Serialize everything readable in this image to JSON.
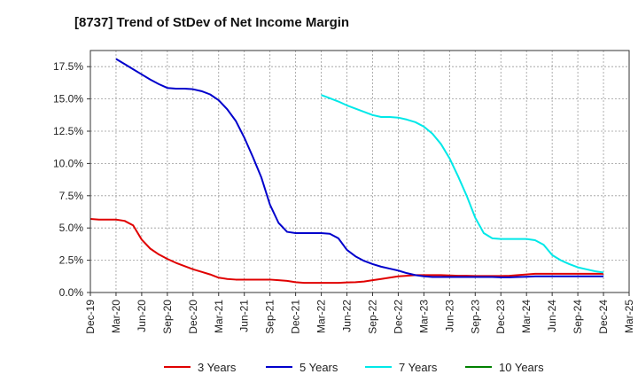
{
  "chart_data": {
    "type": "line",
    "title": "[8737]  Trend of StDev of Net Income Margin",
    "xlabel": "",
    "ylabel": "",
    "ylim": [
      0,
      18.75
    ],
    "y_ticks": [
      "0.0%",
      "2.5%",
      "5.0%",
      "7.5%",
      "10.0%",
      "12.5%",
      "15.0%",
      "17.5%"
    ],
    "x_ticks": [
      "Dec-19",
      "Mar-20",
      "Jun-20",
      "Sep-20",
      "Dec-20",
      "Mar-21",
      "Jun-21",
      "Sep-21",
      "Dec-21",
      "Mar-22",
      "Jun-22",
      "Sep-22",
      "Dec-22",
      "Mar-23",
      "Jun-23",
      "Sep-23",
      "Dec-23",
      "Mar-24",
      "Jun-24",
      "Sep-24",
      "Dec-24",
      "Mar-25"
    ],
    "grid": true,
    "legend_position": "bottom",
    "series": [
      {
        "name": "3 Years",
        "color": "#e00000",
        "points": [
          [
            "2019-12",
            5.7
          ],
          [
            "2020-01",
            5.65
          ],
          [
            "2020-02",
            5.65
          ],
          [
            "2020-03",
            5.65
          ],
          [
            "2020-04",
            5.55
          ],
          [
            "2020-05",
            5.2
          ],
          [
            "2020-06",
            4.1
          ],
          [
            "2020-07",
            3.4
          ],
          [
            "2020-08",
            2.95
          ],
          [
            "2020-09",
            2.6
          ],
          [
            "2020-10",
            2.3
          ],
          [
            "2020-11",
            2.05
          ],
          [
            "2020-12",
            1.8
          ],
          [
            "2021-01",
            1.6
          ],
          [
            "2021-02",
            1.4
          ],
          [
            "2021-03",
            1.15
          ],
          [
            "2021-04",
            1.05
          ],
          [
            "2021-05",
            1.0
          ],
          [
            "2021-06",
            1.0
          ],
          [
            "2021-07",
            1.0
          ],
          [
            "2021-08",
            1.0
          ],
          [
            "2021-09",
            1.0
          ],
          [
            "2021-10",
            0.95
          ],
          [
            "2021-11",
            0.9
          ],
          [
            "2021-12",
            0.8
          ],
          [
            "2022-01",
            0.75
          ],
          [
            "2022-02",
            0.75
          ],
          [
            "2022-03",
            0.75
          ],
          [
            "2022-04",
            0.75
          ],
          [
            "2022-05",
            0.75
          ],
          [
            "2022-06",
            0.78
          ],
          [
            "2022-07",
            0.8
          ],
          [
            "2022-08",
            0.85
          ],
          [
            "2022-09",
            0.95
          ],
          [
            "2022-10",
            1.05
          ],
          [
            "2022-11",
            1.15
          ],
          [
            "2022-12",
            1.25
          ],
          [
            "2023-01",
            1.3
          ],
          [
            "2023-02",
            1.35
          ],
          [
            "2023-03",
            1.35
          ],
          [
            "2023-04",
            1.35
          ],
          [
            "2023-05",
            1.35
          ],
          [
            "2023-06",
            1.32
          ],
          [
            "2023-07",
            1.3
          ],
          [
            "2023-08",
            1.3
          ],
          [
            "2023-09",
            1.28
          ],
          [
            "2023-10",
            1.28
          ],
          [
            "2023-11",
            1.28
          ],
          [
            "2023-12",
            1.28
          ],
          [
            "2024-01",
            1.3
          ],
          [
            "2024-02",
            1.35
          ],
          [
            "2024-03",
            1.4
          ],
          [
            "2024-04",
            1.45
          ],
          [
            "2024-05",
            1.45
          ],
          [
            "2024-06",
            1.45
          ],
          [
            "2024-07",
            1.45
          ],
          [
            "2024-08",
            1.45
          ],
          [
            "2024-09",
            1.45
          ],
          [
            "2024-10",
            1.45
          ],
          [
            "2024-11",
            1.45
          ],
          [
            "2024-12",
            1.45
          ]
        ]
      },
      {
        "name": "5 Years",
        "color": "#0000cc",
        "points": [
          [
            "2020-03",
            18.1
          ],
          [
            "2020-04",
            17.7
          ],
          [
            "2020-05",
            17.3
          ],
          [
            "2020-06",
            16.9
          ],
          [
            "2020-07",
            16.5
          ],
          [
            "2020-08",
            16.15
          ],
          [
            "2020-09",
            15.85
          ],
          [
            "2020-10",
            15.8
          ],
          [
            "2020-11",
            15.8
          ],
          [
            "2020-12",
            15.75
          ],
          [
            "2021-01",
            15.6
          ],
          [
            "2021-02",
            15.35
          ],
          [
            "2021-03",
            14.9
          ],
          [
            "2021-04",
            14.2
          ],
          [
            "2021-05",
            13.3
          ],
          [
            "2021-06",
            12.0
          ],
          [
            "2021-07",
            10.5
          ],
          [
            "2021-08",
            8.9
          ],
          [
            "2021-09",
            6.8
          ],
          [
            "2021-10",
            5.4
          ],
          [
            "2021-11",
            4.7
          ],
          [
            "2021-12",
            4.6
          ],
          [
            "2022-01",
            4.6
          ],
          [
            "2022-02",
            4.6
          ],
          [
            "2022-03",
            4.6
          ],
          [
            "2022-04",
            4.55
          ],
          [
            "2022-05",
            4.2
          ],
          [
            "2022-06",
            3.3
          ],
          [
            "2022-07",
            2.8
          ],
          [
            "2022-08",
            2.45
          ],
          [
            "2022-09",
            2.2
          ],
          [
            "2022-10",
            2.0
          ],
          [
            "2022-11",
            1.85
          ],
          [
            "2022-12",
            1.7
          ],
          [
            "2023-01",
            1.5
          ],
          [
            "2023-02",
            1.35
          ],
          [
            "2023-03",
            1.25
          ],
          [
            "2023-04",
            1.2
          ],
          [
            "2023-05",
            1.2
          ],
          [
            "2023-06",
            1.2
          ],
          [
            "2023-07",
            1.2
          ],
          [
            "2023-08",
            1.2
          ],
          [
            "2023-09",
            1.2
          ],
          [
            "2023-10",
            1.2
          ],
          [
            "2023-11",
            1.2
          ],
          [
            "2023-12",
            1.18
          ],
          [
            "2024-01",
            1.18
          ],
          [
            "2024-02",
            1.2
          ],
          [
            "2024-03",
            1.22
          ],
          [
            "2024-04",
            1.25
          ],
          [
            "2024-05",
            1.25
          ],
          [
            "2024-06",
            1.25
          ],
          [
            "2024-07",
            1.25
          ],
          [
            "2024-08",
            1.25
          ],
          [
            "2024-09",
            1.25
          ],
          [
            "2024-10",
            1.25
          ],
          [
            "2024-11",
            1.25
          ],
          [
            "2024-12",
            1.25
          ]
        ]
      },
      {
        "name": "7 Years",
        "color": "#00e8e8",
        "points": [
          [
            "2022-03",
            15.3
          ],
          [
            "2022-04",
            15.05
          ],
          [
            "2022-05",
            14.8
          ],
          [
            "2022-06",
            14.5
          ],
          [
            "2022-07",
            14.25
          ],
          [
            "2022-08",
            14.0
          ],
          [
            "2022-09",
            13.75
          ],
          [
            "2022-10",
            13.6
          ],
          [
            "2022-11",
            13.6
          ],
          [
            "2022-12",
            13.55
          ],
          [
            "2023-01",
            13.4
          ],
          [
            "2023-02",
            13.2
          ],
          [
            "2023-03",
            12.85
          ],
          [
            "2023-04",
            12.3
          ],
          [
            "2023-05",
            11.5
          ],
          [
            "2023-06",
            10.4
          ],
          [
            "2023-07",
            9.0
          ],
          [
            "2023-08",
            7.5
          ],
          [
            "2023-09",
            5.8
          ],
          [
            "2023-10",
            4.6
          ],
          [
            "2023-11",
            4.2
          ],
          [
            "2023-12",
            4.15
          ],
          [
            "2024-01",
            4.15
          ],
          [
            "2024-02",
            4.15
          ],
          [
            "2024-03",
            4.15
          ],
          [
            "2024-04",
            4.05
          ],
          [
            "2024-05",
            3.7
          ],
          [
            "2024-06",
            2.9
          ],
          [
            "2024-07",
            2.5
          ],
          [
            "2024-08",
            2.2
          ],
          [
            "2024-09",
            1.95
          ],
          [
            "2024-10",
            1.8
          ],
          [
            "2024-11",
            1.65
          ],
          [
            "2024-12",
            1.55
          ]
        ]
      },
      {
        "name": "10 Years",
        "color": "#008000",
        "points": []
      }
    ]
  }
}
